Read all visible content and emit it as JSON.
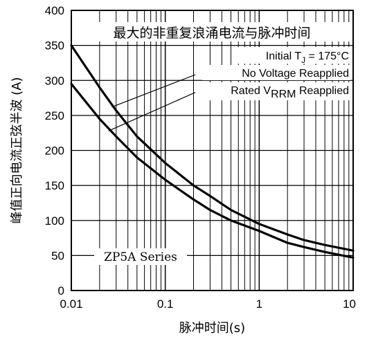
{
  "chart_data": {
    "type": "line",
    "title": "最大的非重复浪涌电流与脉冲时间",
    "xlabel": "脉冲时间(s)",
    "ylabel": "峰值正向电流正弦半波 (A)",
    "xscale": "log",
    "xlim": [
      0.01,
      10
    ],
    "ylim": [
      0,
      400
    ],
    "x_ticks": [
      0.01,
      0.1,
      1,
      10
    ],
    "x_tick_labels": [
      "0.01",
      "0.1",
      "1",
      "10"
    ],
    "y_ticks": [
      0,
      50,
      100,
      150,
      200,
      250,
      300,
      350,
      400
    ],
    "y_tick_labels": [
      "0",
      "50",
      "100",
      "150",
      "200",
      "250",
      "300",
      "350",
      "400"
    ],
    "grid": true,
    "annotations": {
      "condition_prefix": "Initial T",
      "condition_sub": "J",
      "condition_suffix": " = 175°C",
      "series_upper_label": "No Voltage Reapplied",
      "series_lower_prefix": "Rated V",
      "series_lower_sub": "RRM",
      "series_lower_suffix": " Reapplied",
      "series_tag": "ZP5A Series"
    },
    "series": [
      {
        "x": [
          0.01,
          0.02,
          0.03,
          0.05,
          0.1,
          0.2,
          0.3,
          0.5,
          1,
          2,
          3,
          5,
          10
        ],
        "y": [
          350,
          290,
          257,
          220,
          182,
          150,
          135,
          115,
          95,
          80,
          72,
          65,
          57
        ]
      },
      {
        "x": [
          0.01,
          0.02,
          0.03,
          0.05,
          0.1,
          0.2,
          0.3,
          0.5,
          1,
          2,
          3,
          5,
          10
        ],
        "y": [
          295,
          245,
          220,
          190,
          158,
          130,
          115,
          100,
          85,
          68,
          62,
          55,
          47
        ]
      }
    ]
  }
}
